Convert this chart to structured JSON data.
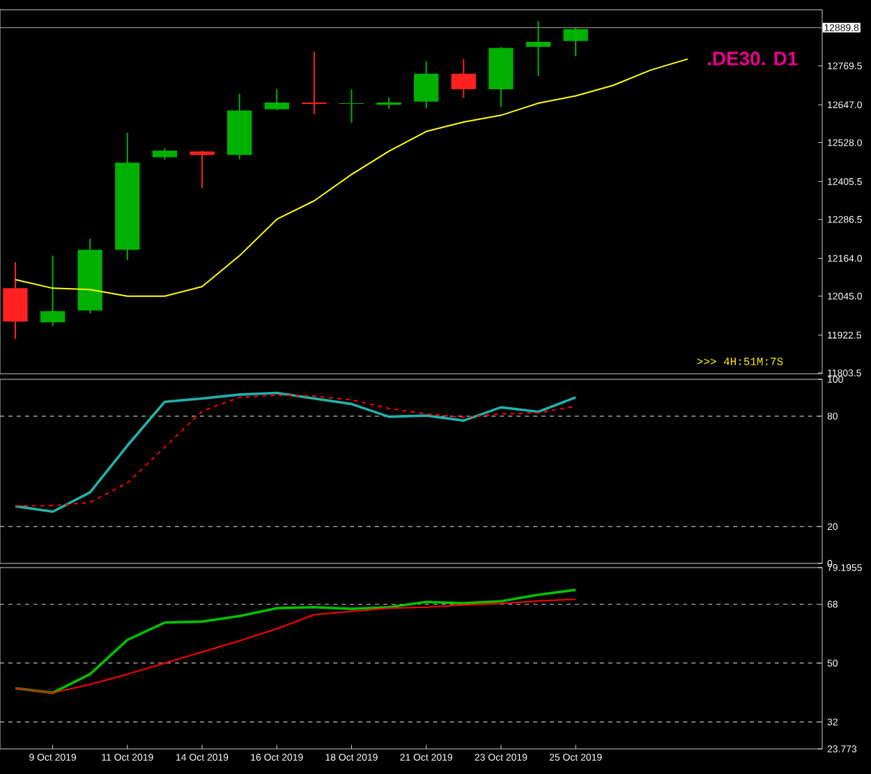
{
  "chart_data": [
    {
      "type": "candlestick",
      "title": ".DE30. D1",
      "annotations": [
        ">>> 4H:51M:7S"
      ],
      "categories": [
        null,
        null,
        null,
        null,
        null,
        null,
        null,
        null,
        null,
        null,
        null,
        null,
        null,
        null,
        null,
        null,
        null,
        null,
        null
      ],
      "ohlc": [
        [
          12070,
          12152,
          11910,
          11965
        ],
        [
          11963,
          12173,
          11951,
          11998
        ],
        [
          12000,
          12226,
          11991,
          12191
        ],
        [
          12191,
          12559,
          12159,
          12465
        ],
        [
          12482,
          12510,
          12475,
          12503
        ],
        [
          12500,
          12503,
          12384,
          12489
        ],
        [
          12489,
          12682,
          12475,
          12629
        ],
        [
          12633,
          12696,
          12630,
          12654
        ],
        [
          12654,
          12814,
          12617,
          12650
        ],
        [
          12650,
          12696,
          12591,
          12652
        ],
        [
          12647,
          12670,
          12635,
          12654
        ],
        [
          12657,
          12784,
          12636,
          12745
        ],
        [
          12745,
          12791,
          12668,
          12696
        ],
        [
          12696,
          12829,
          12640,
          12826
        ],
        [
          12829,
          12910,
          12738,
          12845
        ],
        [
          12848,
          12890,
          12800,
          12885
        ],
        null,
        null,
        null
      ],
      "colors": [
        "#ff2020",
        "#00b000",
        "#00b000",
        "#00b000",
        "#00b000",
        "#ff2020",
        "#00b000",
        "#00b000",
        "#ff2020",
        "#00b000",
        "#00b000",
        "#00b000",
        "#ff2020",
        "#00b000",
        "#00b000",
        "#00b000",
        null,
        null,
        null
      ],
      "series": [
        {
          "type": "line",
          "color": "#ffff00",
          "values": [
            12097,
            12070,
            12066,
            12045,
            12045,
            12075,
            12172,
            12287,
            12345,
            12428,
            12501,
            12563,
            12593,
            12614,
            12652,
            12675,
            12708,
            12756,
            12791
          ]
        }
      ],
      "ylim": [
        11801,
        12946
      ],
      "yticks": [
        12769.5,
        {
          "value": 12647,
          "label": "12647.0"
        },
        {
          "value": 12528,
          "label": "12528.0"
        },
        12405.5,
        12286.5,
        {
          "value": 12164,
          "label": "12164.0"
        },
        {
          "value": 12045,
          "label": "12045.0"
        },
        11922.5,
        11803.5
      ],
      "ref_lines": [
        {
          "axis": "y",
          "value": 12889.8,
          "label": "12889.8",
          "color": "#8a8a8a"
        }
      ],
      "tick_labels": "y"
    },
    {
      "type": "line",
      "categories": [
        null,
        null,
        null,
        null,
        null,
        null,
        null,
        null,
        null,
        null,
        null,
        null,
        null,
        null,
        null,
        null,
        null,
        null,
        null
      ],
      "series": [
        {
          "color": "#20b2aa",
          "line_style": "solid",
          "values": [
            31.1,
            28.1,
            38.6,
            64.0,
            87.8,
            89.6,
            91.7,
            92.6,
            89.6,
            86.6,
            79.7,
            80.3,
            77.6,
            84.8,
            82.4,
            90.2,
            null,
            null,
            null
          ]
        },
        {
          "color": "#ff0000",
          "line_style": "dashed",
          "values": [
            31.3,
            31.3,
            33.2,
            43.7,
            63.2,
            82.7,
            90.2,
            91.4,
            90.9,
            88.8,
            84.2,
            81.2,
            79.4,
            81.2,
            81.8,
            85.4,
            null,
            null,
            null
          ]
        }
      ],
      "ylim": [
        0,
        100
      ],
      "yticks": [
        0,
        20,
        80,
        100
      ],
      "ref_lines": [
        {
          "axis": "y",
          "value": 80,
          "color": "#c0c0c0",
          "line_style": "dashed"
        },
        {
          "axis": "y",
          "value": 20,
          "color": "#c0c0c0",
          "line_style": "dashed"
        }
      ],
      "tick_labels": "y"
    },
    {
      "type": "line",
      "categories": [
        null,
        "9 Oct 2019",
        null,
        "11 Oct 2019",
        null,
        "14 Oct 2019",
        null,
        "16 Oct 2019",
        null,
        "18 Oct 2019",
        null,
        "21 Oct 2019",
        null,
        "23 Oct 2019",
        null,
        "25 Oct 2019",
        null,
        null,
        null
      ],
      "series": [
        {
          "color": "#00c000",
          "line_style": "solid",
          "values": [
            42.3,
            40.9,
            46.6,
            57.1,
            62.4,
            62.7,
            64.4,
            66.8,
            67.1,
            66.6,
            67.1,
            68.7,
            68.3,
            68.9,
            70.9,
            72.4,
            null,
            null,
            null
          ]
        },
        {
          "color": "#ff0000",
          "line_style": "solid",
          "values": [
            42.3,
            40.9,
            43.5,
            46.6,
            50.0,
            53.4,
            56.8,
            60.5,
            64.8,
            65.8,
            66.8,
            67.1,
            67.8,
            68.2,
            69.0,
            69.5,
            null,
            null,
            null
          ]
        }
      ],
      "ylim": [
        23.773,
        79.1955
      ],
      "yticks": [
        23.773,
        32,
        50,
        68,
        79.1955
      ],
      "ref_lines": [
        {
          "axis": "y",
          "value": 68,
          "color": "#c0c0c0",
          "line_style": "dashed"
        },
        {
          "axis": "y",
          "value": 50,
          "color": "#c0c0c0",
          "line_style": "dashed"
        },
        {
          "axis": "y",
          "value": 32,
          "color": "#c0c0c0",
          "line_style": "dashed"
        }
      ]
    }
  ]
}
